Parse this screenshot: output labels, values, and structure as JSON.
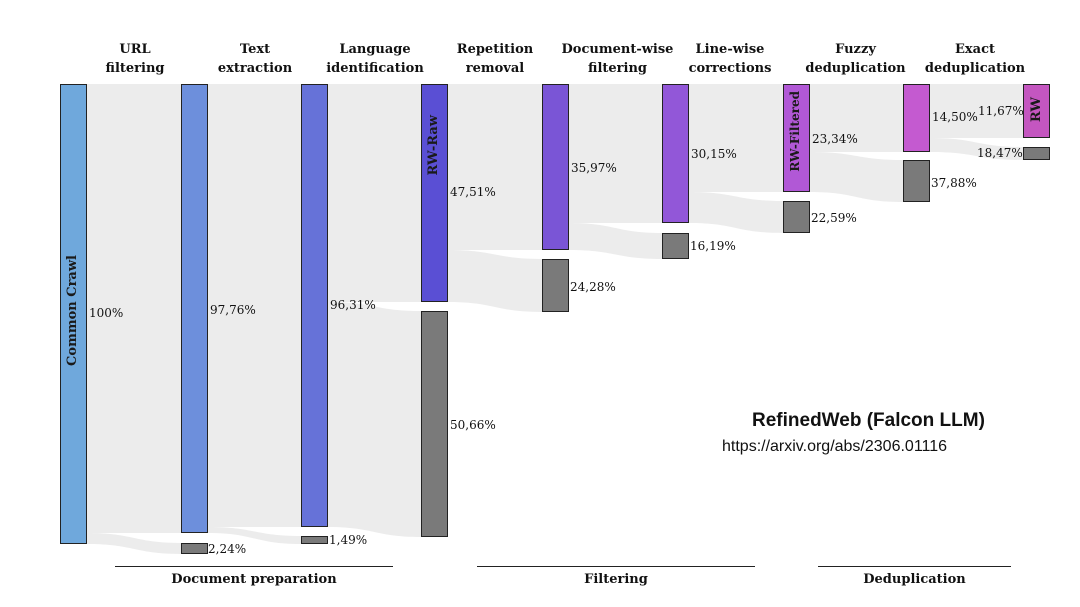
{
  "stages": [
    "URL\nfiltering",
    "Text\nextraction",
    "Language\nidentification",
    "Repetition\nremoval",
    "Document-wise\nfiltering",
    "Line-wise\ncorrections",
    "Fuzzy\ndeduplication",
    "Exact\ndeduplication"
  ],
  "bars": {
    "common_crawl": "Common Crawl",
    "rw_raw": "RW-Raw",
    "rw_filtered": "RW-Filtered",
    "rw": "RW"
  },
  "percentages": {
    "p100": "100%",
    "p9776": "97,76%",
    "p224": "2,24%",
    "p9631": "96,31%",
    "p149": "1,49%",
    "p4751": "47,51%",
    "p5066": "50,66%",
    "p3597": "35,97%",
    "p2428": "24,28%",
    "p3015": "30,15%",
    "p1619": "16,19%",
    "p2334": "23,34%",
    "p2259": "22,59%",
    "p1450": "14,50%",
    "p3788": "37,88%",
    "p1167": "11,67%",
    "p1847": "18,47%"
  },
  "groups": {
    "prep": "Document preparation",
    "filter": "Filtering",
    "dedup": "Deduplication"
  },
  "title": "RefinedWeb (Falcon LLM)",
  "url": "https://arxiv.org/abs/2306.01116",
  "colors": {
    "b0": "#6fa8dc",
    "b1": "#6d8fdc",
    "b2": "#6672d8",
    "b3": "#5a4fd4",
    "b4": "#7a55d6",
    "b5": "#9257d8",
    "b6": "#b158d6",
    "b7": "#c45ad0",
    "b8": "#c456c0",
    "removed": "#7a7a7a",
    "flow": "#ececec"
  }
}
